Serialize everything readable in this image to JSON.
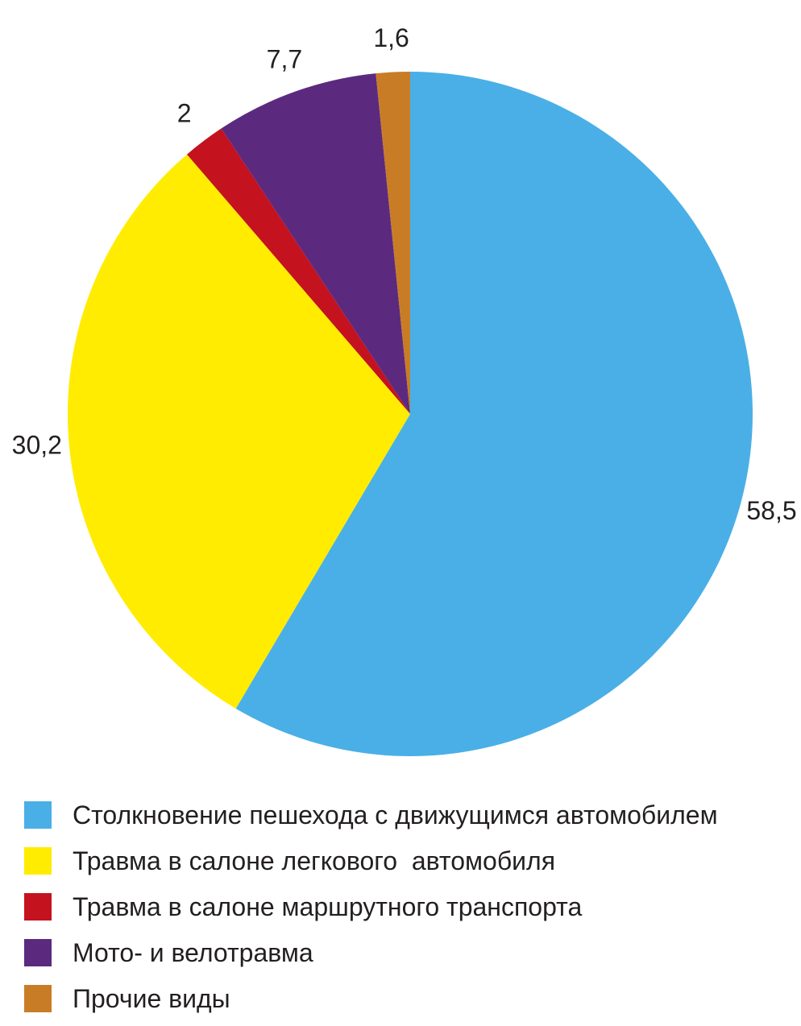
{
  "chart_data": {
    "type": "pie",
    "title": "",
    "slices": [
      {
        "label": "Столкновение пешехода с движущимся автомобилем",
        "value": 58.5,
        "value_label": "58,5",
        "color": "#4aafe6"
      },
      {
        "label": "Травма в салоне легкового  автомобиля",
        "value": 30.2,
        "value_label": "30,2",
        "color": "#ffec00"
      },
      {
        "label": "Травма в салоне маршрутного транспорта",
        "value": 2,
        "value_label": "2",
        "color": "#c4121f"
      },
      {
        "label": "Мото- и велотравма",
        "value": 7.7,
        "value_label": "7,7",
        "color": "#5b2a7f"
      },
      {
        "label": "Прочие виды",
        "value": 1.6,
        "value_label": "1,6",
        "color": "#c97c26"
      }
    ],
    "start_angle": "top",
    "direction": "clockwise",
    "legend_position": "bottom-left"
  }
}
